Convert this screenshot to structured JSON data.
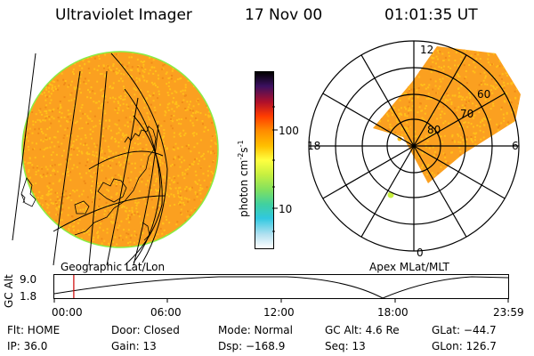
{
  "header": {
    "instrument": "Ultraviolet Imager",
    "date": "17 Nov 00",
    "time": "01:01:35 UT"
  },
  "left_panel": {
    "caption": "Geographic Lat/Lon"
  },
  "colorbar": {
    "label": "photon cm",
    "exp1": "-2",
    "mid": "s",
    "exp2": "-1",
    "ticks": [
      "100",
      "10"
    ],
    "colors": [
      "#000000",
      "#3c1060",
      "#b0102a",
      "#ff3c00",
      "#ff8a00",
      "#ffc000",
      "#ffff40",
      "#c8f040",
      "#80e060",
      "#40d0a0",
      "#30c8e0",
      "#b0e0f0",
      "#ffffff"
    ]
  },
  "right_panel": {
    "caption": "Apex MLat/MLT",
    "mlt_labels": [
      "12",
      "18",
      "6",
      "0"
    ],
    "lat_labels": [
      "60",
      "70",
      "80"
    ]
  },
  "altitude_plot": {
    "ylabel": "GC Alt",
    "yticks": [
      "9.0",
      "1.8"
    ],
    "xticks": [
      "00:00",
      "06:00",
      "12:00",
      "18:00",
      "23:59"
    ],
    "current_hour": 1.03
  },
  "info": {
    "row1": [
      "Flt: HOME",
      "Door: Closed",
      "Mode: Normal",
      "GC Alt: 4.6 Re",
      "GLat: −44.7"
    ],
    "row2": [
      "IP: 36.0",
      "Gain: 13",
      "Dsp: −168.9",
      "Seq: 13",
      "GLon: 126.7"
    ]
  },
  "colors": {
    "image_base": "#fba020",
    "image_speckle": "#ffc11a",
    "limb": "#88ee44",
    "marker": "#cc0000"
  }
}
